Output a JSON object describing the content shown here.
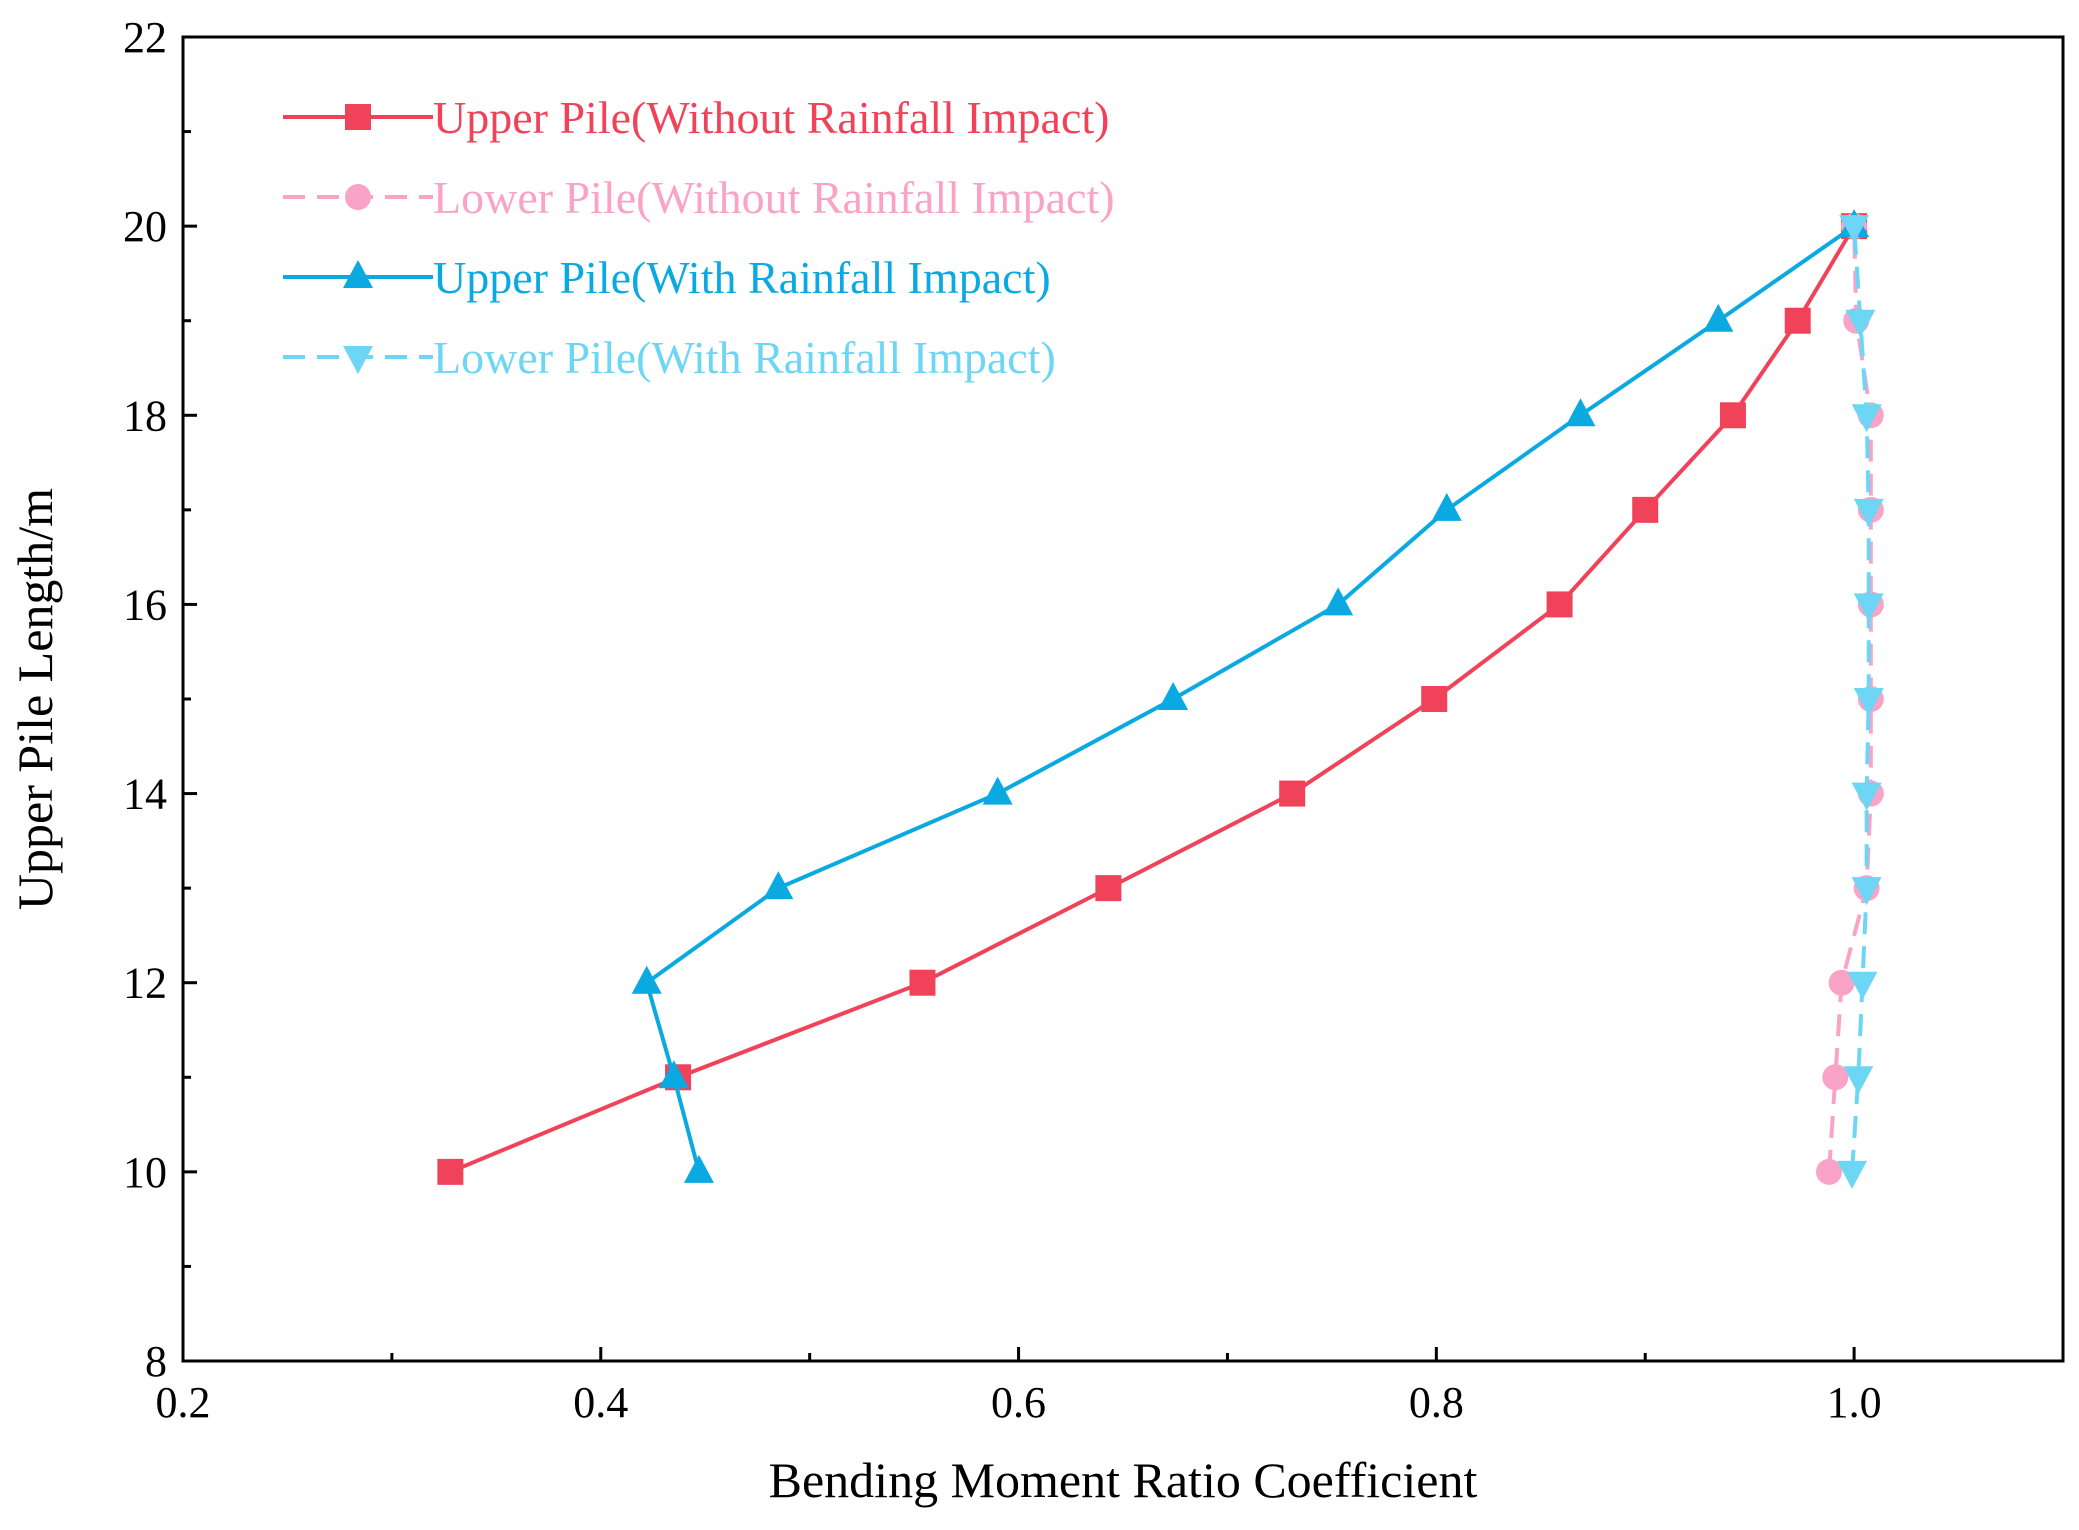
{
  "chart_data": {
    "type": "line",
    "xlabel": "Bending Moment Ratio Coefficient",
    "ylabel": "Upper Pile Length/m",
    "xlim": [
      0.2,
      1.1
    ],
    "ylim": [
      8,
      22
    ],
    "xticks": [
      0.2,
      0.4,
      0.6,
      0.8,
      1.0
    ],
    "xtick_labels": [
      "0.2",
      "0.4",
      "0.6",
      "0.8",
      "1.0"
    ],
    "yticks": [
      8,
      10,
      12,
      14,
      16,
      18,
      20,
      22
    ],
    "ytick_labels": [
      "8",
      "10",
      "12",
      "14",
      "16",
      "18",
      "20",
      "22"
    ],
    "legend_position": "top-left",
    "grid": false,
    "series": [
      {
        "name": "Upper Pile(Without Rainfall Impact)",
        "color": "#F0435A",
        "line": "solid",
        "marker": "square",
        "points": [
          [
            0.328,
            10
          ],
          [
            0.437,
            11
          ],
          [
            0.554,
            12
          ],
          [
            0.643,
            13
          ],
          [
            0.731,
            14
          ],
          [
            0.799,
            15
          ],
          [
            0.859,
            16
          ],
          [
            0.9,
            17
          ],
          [
            0.942,
            18
          ],
          [
            0.973,
            19
          ],
          [
            1.0,
            20
          ]
        ]
      },
      {
        "name": "Lower Pile(Without Rainfall Impact)",
        "color": "#F9A3C6",
        "line": "dashed",
        "marker": "circle",
        "points": [
          [
            0.988,
            10
          ],
          [
            0.991,
            11
          ],
          [
            0.994,
            12
          ],
          [
            1.006,
            13
          ],
          [
            1.008,
            14
          ],
          [
            1.008,
            15
          ],
          [
            1.008,
            16
          ],
          [
            1.008,
            17
          ],
          [
            1.008,
            18
          ],
          [
            1.001,
            19
          ],
          [
            1.0,
            20
          ]
        ]
      },
      {
        "name": "Upper Pile(With Rainfall Impact)",
        "color": "#0AA9E1",
        "line": "solid",
        "marker": "triangle-up",
        "points": [
          [
            0.447,
            10
          ],
          [
            0.435,
            11
          ],
          [
            0.422,
            12
          ],
          [
            0.485,
            13
          ],
          [
            0.59,
            14
          ],
          [
            0.674,
            15
          ],
          [
            0.753,
            16
          ],
          [
            0.805,
            17
          ],
          [
            0.869,
            18
          ],
          [
            0.935,
            19
          ],
          [
            1.0,
            20
          ]
        ]
      },
      {
        "name": "Lower Pile(With Rainfall Impact)",
        "color": "#6DD6F4",
        "line": "dashed",
        "marker": "triangle-down",
        "points": [
          [
            0.999,
            10
          ],
          [
            1.002,
            11
          ],
          [
            1.004,
            12
          ],
          [
            1.006,
            13
          ],
          [
            1.006,
            14
          ],
          [
            1.007,
            15
          ],
          [
            1.007,
            16
          ],
          [
            1.007,
            17
          ],
          [
            1.006,
            18
          ],
          [
            1.003,
            19
          ],
          [
            1.0,
            20
          ]
        ]
      }
    ]
  }
}
